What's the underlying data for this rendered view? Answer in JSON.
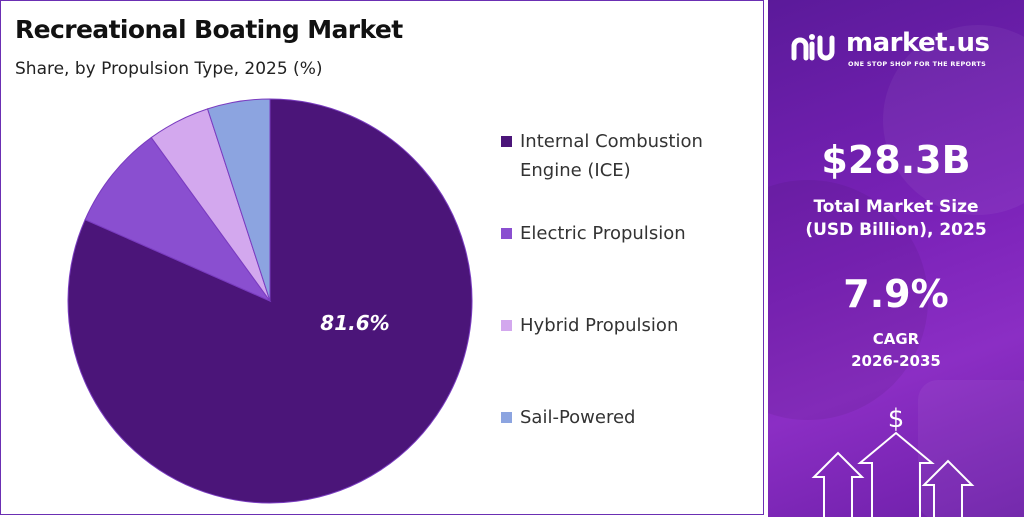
{
  "chart": {
    "title": "Recreational Boating Market",
    "subtitle": "Share, by Propulsion Type, 2025 (%)"
  },
  "chart_data": {
    "type": "pie",
    "title": "Recreational Boating Market",
    "subtitle": "Share, by Propulsion Type, 2025 (%)",
    "categories": [
      "Internal Combustion Engine (ICE)",
      "Electric Propulsion",
      "Hybrid Propulsion",
      "Sail-Powered"
    ],
    "values": [
      81.6,
      8.4,
      5.0,
      5.0
    ],
    "colors": [
      "#4b1579",
      "#8a4fd0",
      "#d3a8ee",
      "#8ca4e0"
    ],
    "data_labels": [
      "81.6%",
      "",
      "",
      ""
    ],
    "legend_position": "right"
  },
  "side": {
    "brand_name": "market.us",
    "brand_tagline": "ONE STOP SHOP FOR THE REPORTS",
    "market_size_value": "$28.3B",
    "market_size_label_1": "Total Market Size",
    "market_size_label_2": "(USD Billion), 2025",
    "cagr_value": "7.9%",
    "cagr_label": "CAGR",
    "cagr_period": "2026-2035",
    "dollar_icon": "dollar-sign-icon",
    "arrow_icons": "growth-arrows-icon"
  }
}
